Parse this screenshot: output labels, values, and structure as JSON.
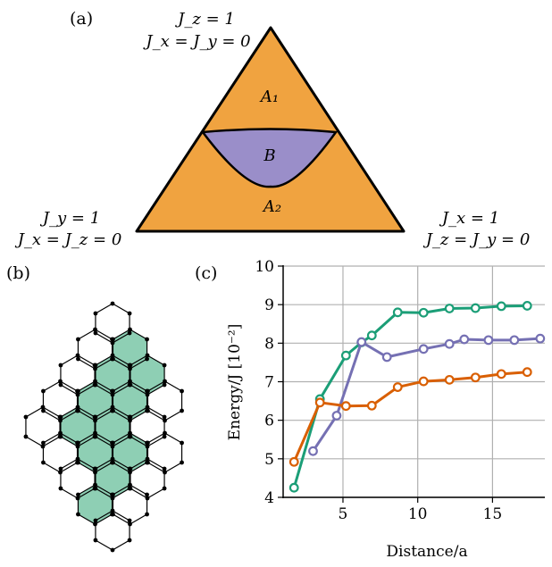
{
  "panel_a": {
    "label": "(a)",
    "top_vertex": [
      "J_z = 1",
      "J_x = J_y = 0"
    ],
    "left_vertex": [
      "J_y = 1",
      "J_x = J_z = 0"
    ],
    "right_vertex": [
      "J_x = 1",
      "J_z = J_y = 0"
    ],
    "regions": {
      "upper": "A₁",
      "middle": "B",
      "lower": "A₂"
    },
    "colors": {
      "gapped": "#f0a340",
      "gapless": "#9a8ec9"
    }
  },
  "panel_b": {
    "label": "(b)",
    "colors": {
      "shaded": "#8ecfb4",
      "edge": "#000000"
    }
  },
  "panel_c": {
    "label": "(c)"
  },
  "chart_data": {
    "type": "line",
    "xlabel": "Distance/a",
    "ylabel": "Energy/J [10⁻²]",
    "xlim": [
      1,
      18.5
    ],
    "ylim": [
      4,
      10
    ],
    "xticks": [
      5,
      10,
      15
    ],
    "yticks": [
      4,
      5,
      6,
      7,
      8,
      9,
      10
    ],
    "grid": true,
    "series": [
      {
        "color": "#1b9e77",
        "points": [
          [
            1.73,
            4.25
          ],
          [
            3.46,
            6.55
          ],
          [
            5.2,
            7.68
          ],
          [
            6.24,
            8.02
          ],
          [
            6.93,
            8.2
          ],
          [
            8.66,
            8.8
          ],
          [
            10.39,
            8.79
          ],
          [
            12.12,
            8.9
          ],
          [
            13.86,
            8.91
          ],
          [
            15.59,
            8.96
          ],
          [
            17.32,
            8.97
          ]
        ]
      },
      {
        "color": "#7570b3",
        "points": [
          [
            3.0,
            5.2
          ],
          [
            4.58,
            6.12
          ],
          [
            6.24,
            8.03
          ],
          [
            7.94,
            7.64
          ],
          [
            10.39,
            7.85
          ],
          [
            12.12,
            7.98
          ],
          [
            13.11,
            8.1
          ],
          [
            14.73,
            8.08
          ],
          [
            16.46,
            8.08
          ],
          [
            18.19,
            8.12
          ]
        ]
      },
      {
        "color": "#d95f02",
        "points": [
          [
            1.73,
            4.92
          ],
          [
            3.46,
            6.46
          ],
          [
            5.2,
            6.37
          ],
          [
            6.93,
            6.38
          ],
          [
            8.66,
            6.86
          ],
          [
            10.39,
            7.01
          ],
          [
            12.12,
            7.05
          ],
          [
            13.86,
            7.11
          ],
          [
            15.59,
            7.2
          ],
          [
            17.32,
            7.25
          ]
        ]
      }
    ]
  }
}
